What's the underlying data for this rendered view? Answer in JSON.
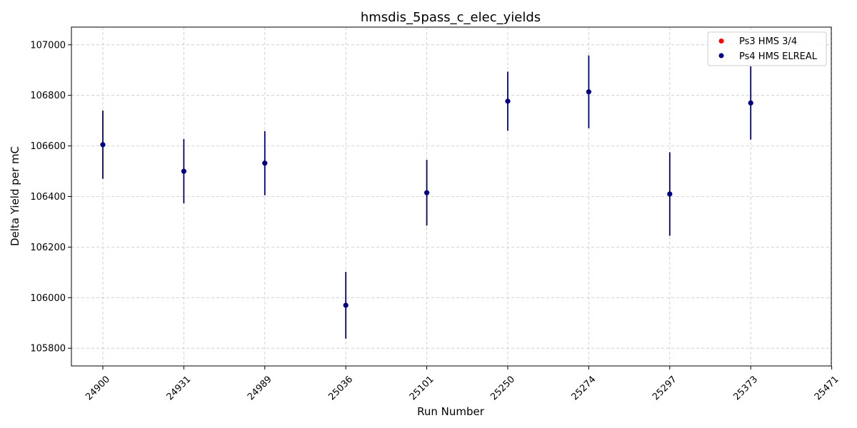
{
  "chart_data": {
    "type": "scatter",
    "title": "hmsdis_5pass_c_elec_yields",
    "xlabel": "Run Number",
    "ylabel": "Delta Yield per mC",
    "x_categories": [
      "24900",
      "24931",
      "24989",
      "25036",
      "25101",
      "25250",
      "25274",
      "25297",
      "25373",
      "25471"
    ],
    "ylim": [
      105730,
      107070
    ],
    "yticks": [
      105800,
      106000,
      106200,
      106400,
      106600,
      106800,
      107000
    ],
    "grid": true,
    "legend_position": "top-right",
    "series": [
      {
        "name": "Ps3 HMS 3/4",
        "color": "#ff0000",
        "points": []
      },
      {
        "name": "Ps4 HMS ELREAL",
        "color": "#000080",
        "points": [
          {
            "x": "24900",
            "y": 106605,
            "err": 135
          },
          {
            "x": "24931",
            "y": 106500,
            "err": 127
          },
          {
            "x": "24989",
            "y": 106532,
            "err": 127
          },
          {
            "x": "25036",
            "y": 105970,
            "err": 132
          },
          {
            "x": "25101",
            "y": 106415,
            "err": 130
          },
          {
            "x": "25250",
            "y": 106777,
            "err": 117
          },
          {
            "x": "25274",
            "y": 106814,
            "err": 144
          },
          {
            "x": "25297",
            "y": 106410,
            "err": 165
          },
          {
            "x": "25373",
            "y": 106770,
            "err": 145
          }
        ]
      }
    ]
  }
}
